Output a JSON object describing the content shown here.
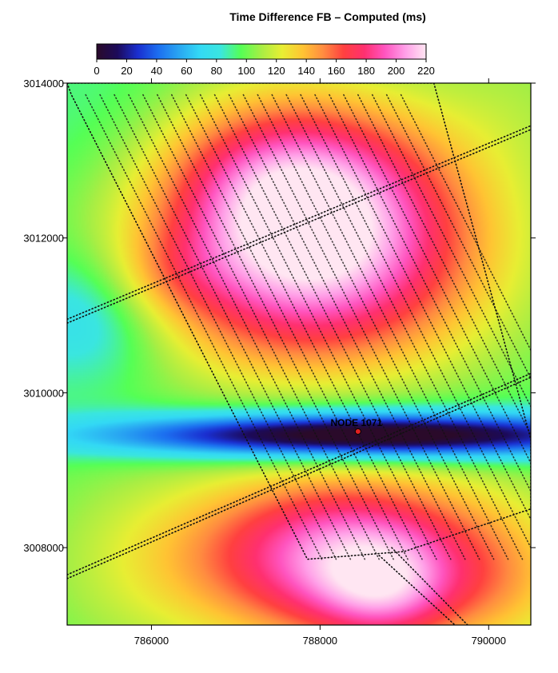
{
  "chart_data": {
    "type": "heatmap",
    "title": "Time Difference FB – Computed (ms)",
    "xlabel": "",
    "ylabel": "",
    "xlim": [
      785000,
      790500
    ],
    "ylim": [
      3007000,
      3014000
    ],
    "x_ticks": [
      786000,
      788000,
      790000
    ],
    "x_tick_labels": [
      "786000",
      "788000",
      "790000"
    ],
    "y_ticks": [
      3008000,
      3010000,
      3012000,
      3014000
    ],
    "y_tick_labels": [
      "3008000",
      "3010000",
      "3012000",
      "3014000"
    ],
    "colorbar": {
      "min": 0,
      "max": 220,
      "ticks": [
        0,
        20,
        40,
        60,
        80,
        100,
        120,
        140,
        160,
        180,
        200,
        220
      ],
      "tick_labels": [
        "0",
        "20",
        "40",
        "60",
        "80",
        "100",
        "120",
        "140",
        "160",
        "180",
        "200",
        "220"
      ],
      "colors": [
        "#2a0a2a",
        "#1c0a5a",
        "#1a2fd0",
        "#1c6ff0",
        "#29a6f2",
        "#33d9f5",
        "#3ae6e0",
        "#55ff55",
        "#a8ee44",
        "#e8ee33",
        "#ffc433",
        "#ff8c40",
        "#ff4040",
        "#ff3070",
        "#ff55c0",
        "#ffa0e8",
        "#ffe6f2"
      ]
    },
    "grid": false,
    "legend": "none",
    "field_features": [
      {
        "type": "background",
        "value": 95
      },
      {
        "type": "gaussian",
        "x": 787900,
        "y": 3011900,
        "sx": 1400,
        "sy": 1100,
        "amp": 130
      },
      {
        "type": "gaussian",
        "x": 787600,
        "y": 3012900,
        "sx": 1000,
        "sy": 700,
        "amp": 40
      },
      {
        "type": "gaussian",
        "x": 788300,
        "y": 3007900,
        "sx": 1300,
        "sy": 800,
        "amp": 110
      },
      {
        "type": "gaussian",
        "x": 788800,
        "y": 3007400,
        "sx": 600,
        "sy": 500,
        "amp": 40
      },
      {
        "type": "gaussian",
        "x": 788600,
        "y": 3009450,
        "sx": 2200,
        "sy": 200,
        "amp": -110
      },
      {
        "type": "gaussian",
        "x": 788200,
        "y": 3009450,
        "sx": 1300,
        "sy": 500,
        "amp": -20
      },
      {
        "type": "gaussian",
        "x": 785300,
        "y": 3011000,
        "sx": 700,
        "sy": 600,
        "amp": -30
      },
      {
        "type": "gaussian",
        "x": 785600,
        "y": 3013200,
        "sx": 900,
        "sy": 900,
        "amp": -10
      },
      {
        "type": "gaussian",
        "x": 785800,
        "y": 3007800,
        "sx": 900,
        "sy": 900,
        "amp": 15
      },
      {
        "type": "gaussian",
        "x": 786200,
        "y": 3011500,
        "sx": 500,
        "sy": 400,
        "amp": 15
      },
      {
        "type": "gaussian",
        "x": 790400,
        "y": 3013800,
        "sx": 800,
        "sy": 800,
        "amp": 10
      },
      {
        "type": "gaussian",
        "x": 790300,
        "y": 3007500,
        "sx": 600,
        "sy": 700,
        "amp": 20
      }
    ],
    "receiver_lines": [
      {
        "type": "dotted-line",
        "x1": 785000,
        "y1": 3010900,
        "x2": 790500,
        "y2": 3013400
      },
      {
        "type": "dotted-line",
        "x1": 785000,
        "y1": 3010950,
        "x2": 790500,
        "y2": 3013450
      },
      {
        "type": "dotted-line",
        "x1": 785000,
        "y1": 3007600,
        "x2": 790500,
        "y2": 3010200
      },
      {
        "type": "dotted-line",
        "x1": 785000,
        "y1": 3007650,
        "x2": 790500,
        "y2": 3010250
      },
      {
        "type": "dotted-line",
        "x1": 788700,
        "y1": 3007900,
        "x2": 789600,
        "y2": 3007000
      },
      {
        "type": "dotted-line",
        "x1": 788850,
        "y1": 3008000,
        "x2": 789750,
        "y2": 3007000
      }
    ],
    "shot_area": {
      "type": "dotted-polygon",
      "points": [
        [
          785000,
          3014000
        ],
        [
          785050,
          3013850
        ],
        [
          787850,
          3007850
        ],
        [
          789000,
          3007950
        ],
        [
          790500,
          3008500
        ],
        [
          790500,
          3009400
        ],
        [
          789350,
          3014000
        ]
      ]
    },
    "annotations": [
      {
        "text": "NODE 1071",
        "x": 788450,
        "y": 3009500
      }
    ]
  }
}
